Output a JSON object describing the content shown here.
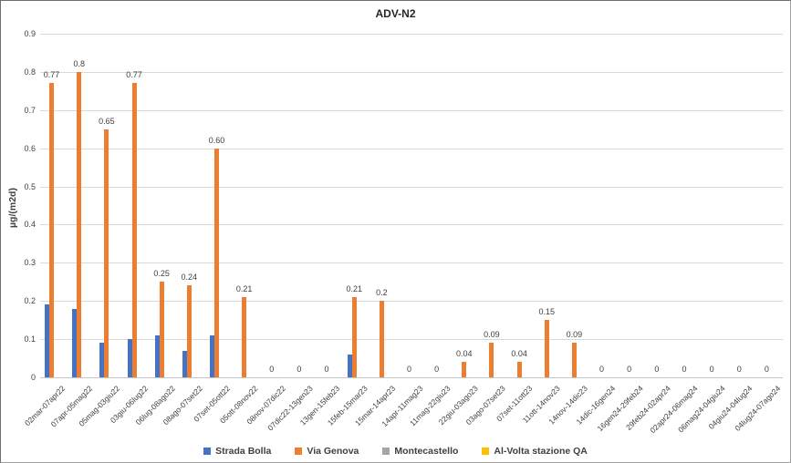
{
  "chart_data": {
    "type": "bar",
    "title": "ADV-N2",
    "xlabel": "",
    "ylabel": "µg/(m2d)",
    "ylim": [
      0,
      0.9
    ],
    "ytick_step": 0.1,
    "yticks": [
      "0",
      "0.1",
      "0.2",
      "0.3",
      "0.4",
      "0.5",
      "0.6",
      "0.7",
      "0.8",
      "0.9"
    ],
    "grid": true,
    "legend_position": "bottom",
    "categories": [
      "02mar-07apr22",
      "07apr-05mag22",
      "05mag-03giu22",
      "03giu-06lug22",
      "06lug-08ago22",
      "08ago-07set22",
      "07set-05ott22",
      "05ott-08nov22",
      "08nov-07dic22",
      "07dic22-13gen23",
      "13gen-15feb23",
      "15feb-15mar23",
      "15mar-14apr23",
      "14apr-11mag23",
      "11mag-22giu23",
      "22giu-03ago23",
      "03ago-07set23",
      "07set-11ott23",
      "11ott-14nov23",
      "14nov-14dic23",
      "14dic-16gen24",
      "16gen24-29feb24",
      "29feb24-02apr24",
      "02apr24-06mag24",
      "06mag24-04giu24",
      "04giu24-04lug24",
      "04lug24-07ago24"
    ],
    "series": [
      {
        "name": "Strada Bolla",
        "color": "#4472C4",
        "values": [
          0.19,
          0.18,
          0.09,
          0.1,
          0.11,
          0.07,
          0.11,
          0,
          0,
          0,
          0,
          0.06,
          0,
          0,
          0,
          0,
          0,
          0,
          0,
          0,
          0,
          0,
          0,
          0,
          0,
          0,
          0
        ]
      },
      {
        "name": "Via Genova",
        "color": "#ED7D31",
        "values": [
          0.77,
          0.8,
          0.65,
          0.77,
          0.25,
          0.24,
          0.6,
          0.21,
          0,
          0,
          0,
          0.21,
          0.2,
          0,
          0,
          0.04,
          0.09,
          0.04,
          0.15,
          0.09,
          0,
          0,
          0,
          0,
          0,
          0,
          0
        ],
        "data_labels": [
          "0.77",
          "0.8",
          "0.65",
          "0.77",
          "0.25",
          "0.24",
          "0.60",
          "0.21",
          "0",
          "0",
          "0",
          "0.21",
          "0.2",
          "0",
          "0",
          "0.04",
          "0.09",
          "0.04",
          "0.15",
          "0.09",
          "0",
          "0",
          "0",
          "0",
          "0",
          "0",
          "0"
        ]
      },
      {
        "name": "Montecastello",
        "color": "#A5A5A5",
        "values": [
          0,
          0,
          0,
          0,
          0,
          0,
          0,
          0,
          0,
          0,
          0,
          0,
          0,
          0,
          0,
          0,
          0,
          0,
          0,
          0,
          0,
          0,
          0,
          0,
          0,
          0,
          0
        ]
      },
      {
        "name": "Al-Volta stazione QA",
        "color": "#FFC000",
        "values": [
          0,
          0,
          0,
          0,
          0,
          0,
          0,
          0,
          0,
          0,
          0,
          0,
          0,
          0,
          0,
          0,
          0,
          0,
          0,
          0,
          0,
          0,
          0,
          0,
          0,
          0,
          0
        ]
      }
    ]
  }
}
